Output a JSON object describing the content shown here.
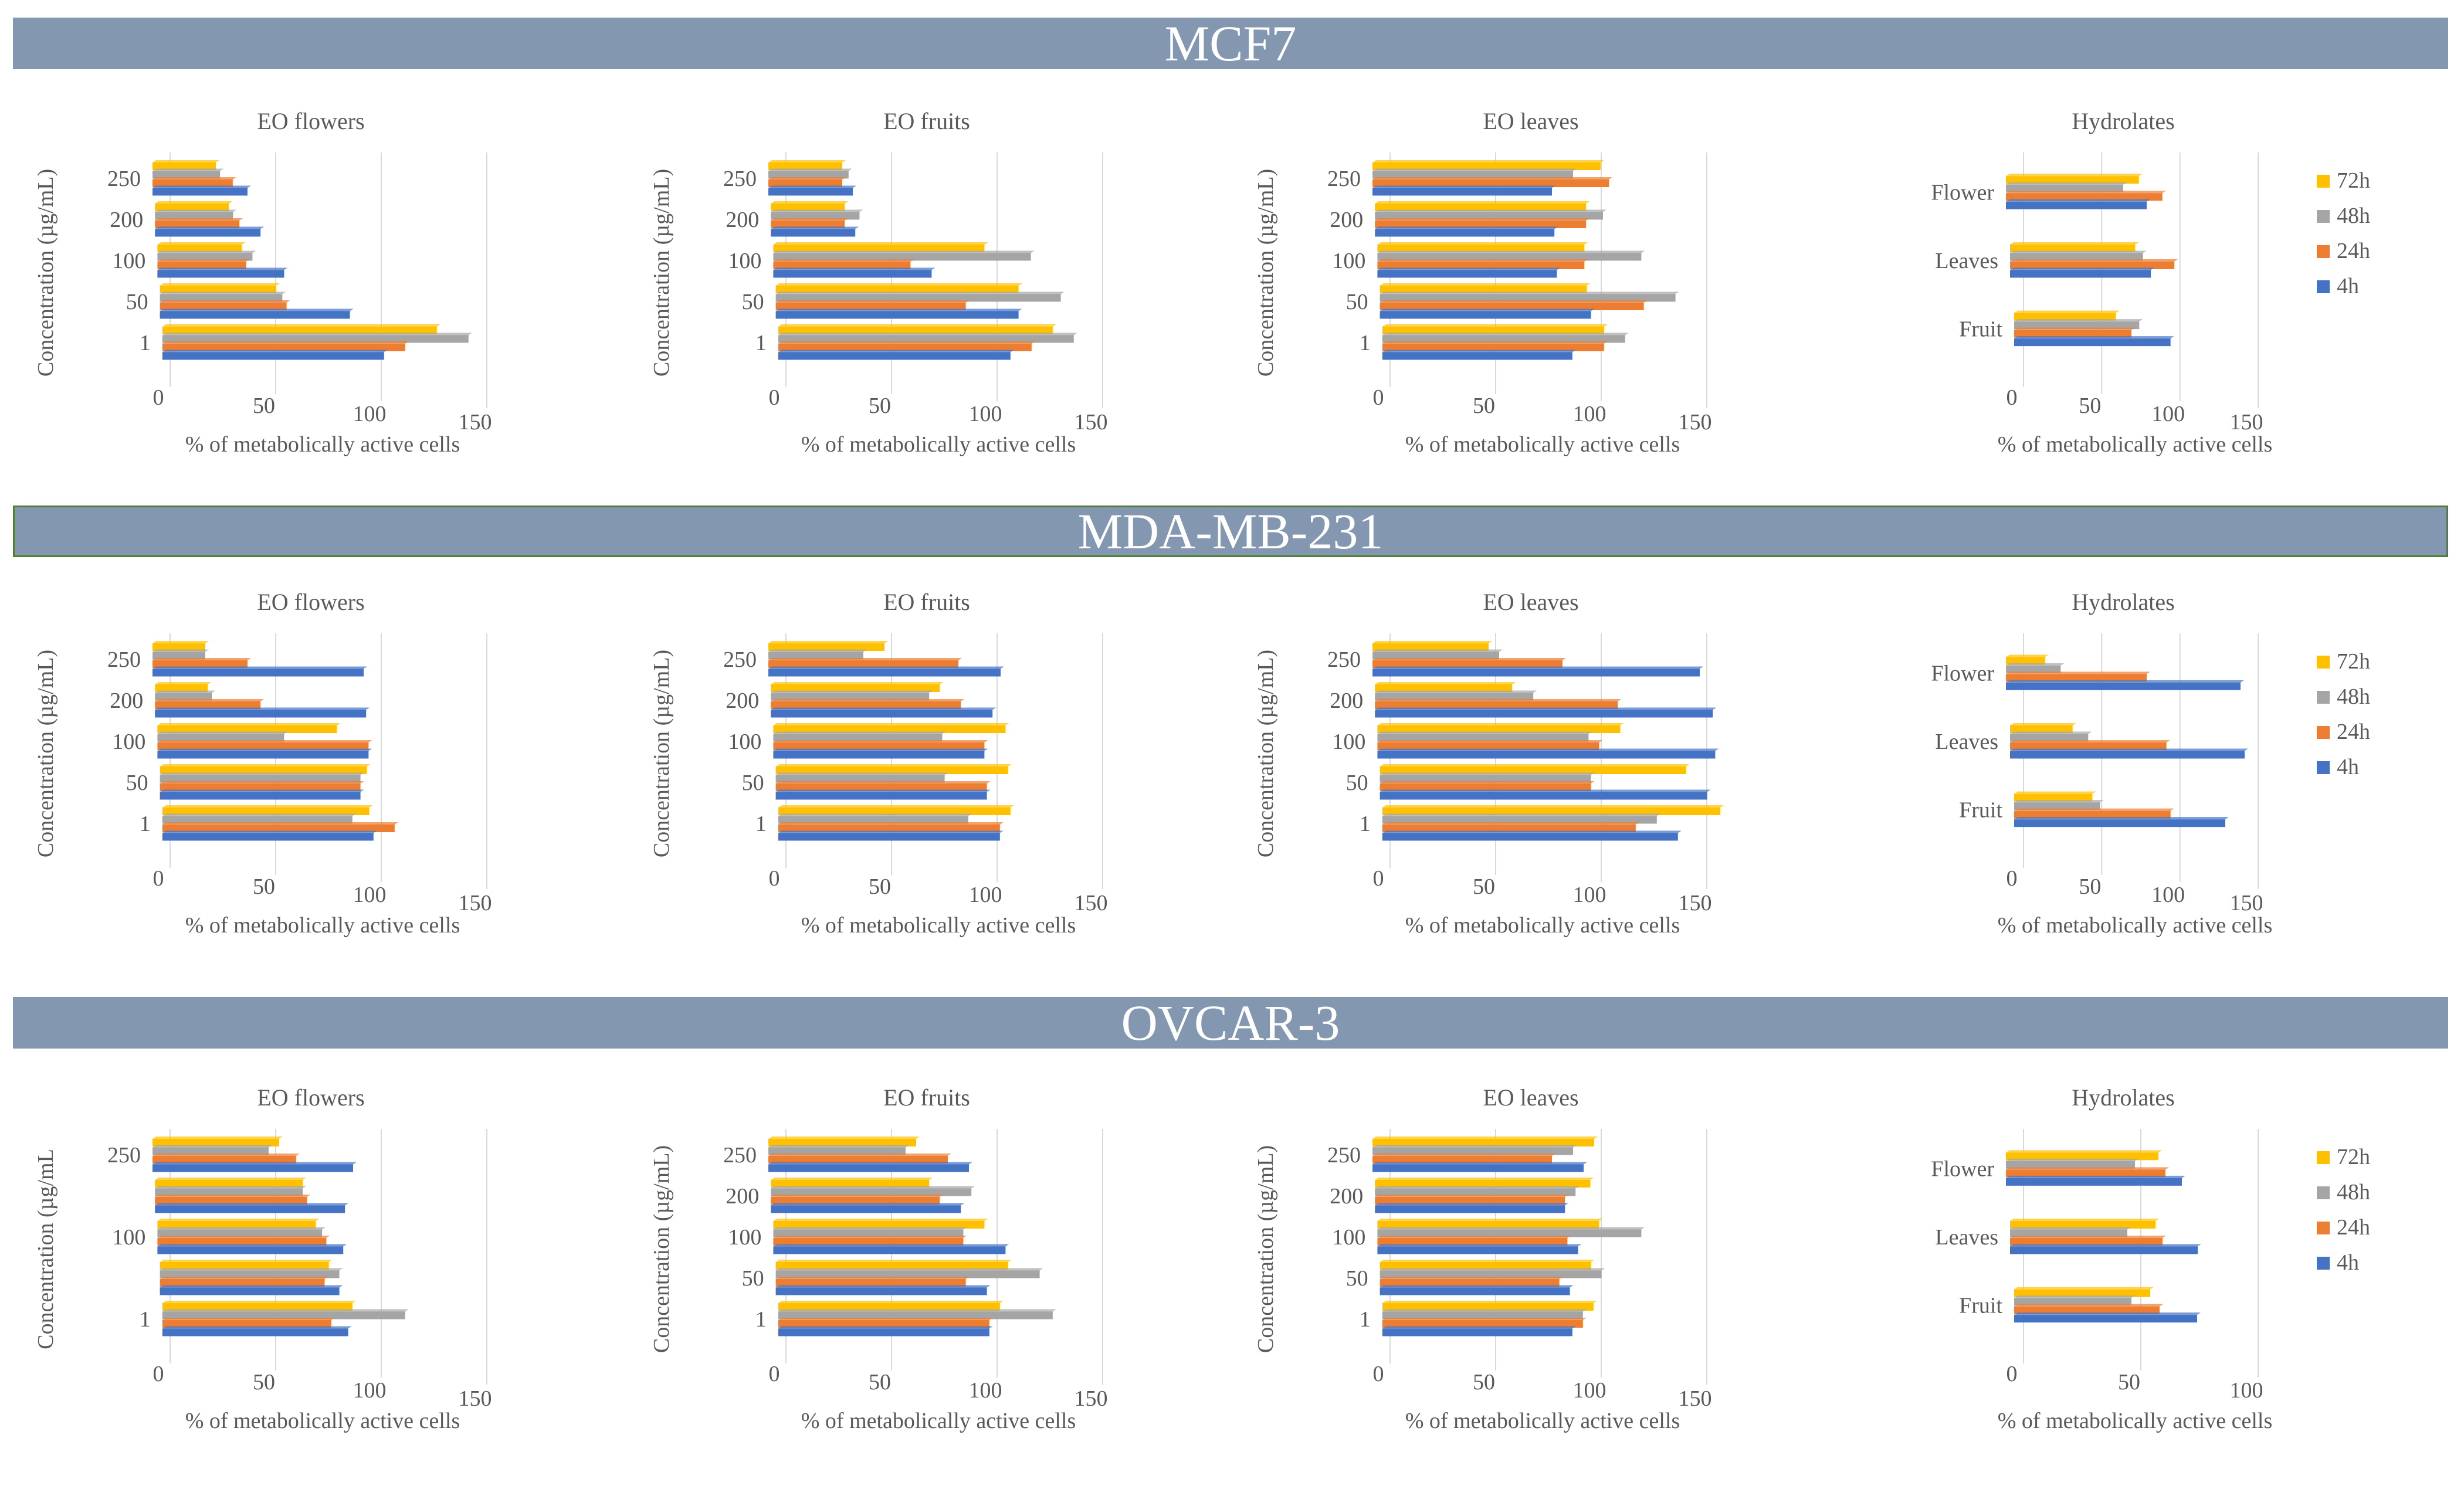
{
  "colors": {
    "h72": "#ffc000",
    "h48": "#a5a5a5",
    "h24": "#ed7d31",
    "h4": "#4472c4",
    "banner": "#8497b0",
    "text": "#595959",
    "grid": "#d9d9d9"
  },
  "series_names": [
    "72h",
    "48h",
    "24h",
    "4h"
  ],
  "sections": [
    {
      "title": "MCF7"
    },
    {
      "title": "MDA-MB-231"
    },
    {
      "title": "OVCAR-3"
    }
  ],
  "chart_data": [
    {
      "type": "bar",
      "section": "MCF7",
      "title": "EO flowers",
      "ylabel": "Concentration (µg/mL)",
      "xlabel": "% of metabolically active cells",
      "xlim": [
        0,
        150
      ],
      "xticks": [
        0,
        50,
        100,
        150
      ],
      "categories": [
        "250",
        "200",
        "100",
        "50",
        "1"
      ],
      "series": [
        {
          "name": "72h",
          "values": [
            30,
            35,
            40,
            55,
            130
          ]
        },
        {
          "name": "48h",
          "values": [
            32,
            37,
            45,
            58,
            145
          ]
        },
        {
          "name": "24h",
          "values": [
            38,
            40,
            42,
            60,
            115
          ]
        },
        {
          "name": "4h",
          "values": [
            45,
            50,
            60,
            90,
            105
          ]
        }
      ],
      "legend": false
    },
    {
      "type": "bar",
      "section": "MCF7",
      "title": "EO fruits",
      "ylabel": "Concentration (µg/mL)",
      "xlabel": "% of metabolically active cells",
      "xlim": [
        0,
        150
      ],
      "xticks": [
        0,
        50,
        100,
        150
      ],
      "categories": [
        "250",
        "200",
        "100",
        "50",
        "1"
      ],
      "series": [
        {
          "name": "72h",
          "values": [
            35,
            35,
            100,
            115,
            130
          ]
        },
        {
          "name": "48h",
          "values": [
            38,
            42,
            122,
            135,
            140
          ]
        },
        {
          "name": "24h",
          "values": [
            35,
            35,
            65,
            90,
            120
          ]
        },
        {
          "name": "4h",
          "values": [
            40,
            40,
            75,
            115,
            110
          ]
        }
      ],
      "legend": false
    },
    {
      "type": "bar",
      "section": "MCF7",
      "title": "EO leaves",
      "ylabel": "Concentration (µg/mL)",
      "xlabel": "% of metabolically active cells",
      "xlim": [
        0,
        150
      ],
      "xticks": [
        0,
        50,
        100,
        150
      ],
      "categories": [
        "250",
        "200",
        "100",
        "50",
        "1"
      ],
      "series": [
        {
          "name": "72h",
          "values": [
            108,
            100,
            98,
            98,
            105
          ]
        },
        {
          "name": "48h",
          "values": [
            95,
            108,
            125,
            140,
            115
          ]
        },
        {
          "name": "24h",
          "values": [
            112,
            100,
            98,
            125,
            105
          ]
        },
        {
          "name": "4h",
          "values": [
            85,
            85,
            85,
            100,
            90
          ]
        }
      ],
      "legend": false
    },
    {
      "type": "bar",
      "section": "MCF7",
      "title": "Hydrolates",
      "ylabel": "",
      "xlabel": "% of metabolically active cells",
      "xlim": [
        0,
        150
      ],
      "xticks": [
        0,
        50,
        100,
        150
      ],
      "categories": [
        "Flower",
        "Leaves",
        "Fruit"
      ],
      "series": [
        {
          "name": "72h",
          "values": [
            85,
            80,
            65
          ]
        },
        {
          "name": "48h",
          "values": [
            75,
            85,
            80
          ]
        },
        {
          "name": "24h",
          "values": [
            100,
            105,
            75
          ]
        },
        {
          "name": "4h",
          "values": [
            90,
            90,
            100
          ]
        }
      ],
      "legend": true
    },
    {
      "type": "bar",
      "section": "MDA-MB-231",
      "title": "EO flowers",
      "ylabel": "Concentration (µg/mL)",
      "xlabel": "% of metabolically active cells",
      "xlim": [
        0,
        150
      ],
      "xticks": [
        0,
        50,
        100,
        150
      ],
      "categories": [
        "250",
        "200",
        "100",
        "50",
        "1"
      ],
      "series": [
        {
          "name": "72h",
          "values": [
            25,
            25,
            85,
            98,
            98
          ]
        },
        {
          "name": "48h",
          "values": [
            25,
            27,
            60,
            95,
            90
          ]
        },
        {
          "name": "24h",
          "values": [
            45,
            50,
            100,
            95,
            110
          ]
        },
        {
          "name": "4h",
          "values": [
            100,
            100,
            100,
            95,
            100
          ]
        }
      ],
      "legend": false
    },
    {
      "type": "bar",
      "section": "MDA-MB-231",
      "title": "EO fruits",
      "ylabel": "Concentration (µg/mL)",
      "xlabel": "% of metabolically active cells",
      "xlim": [
        0,
        150
      ],
      "xticks": [
        0,
        50,
        100,
        150
      ],
      "categories": [
        "250",
        "200",
        "100",
        "50",
        "1"
      ],
      "series": [
        {
          "name": "72h",
          "values": [
            55,
            80,
            110,
            110,
            110
          ]
        },
        {
          "name": "48h",
          "values": [
            45,
            75,
            80,
            80,
            90
          ]
        },
        {
          "name": "24h",
          "values": [
            90,
            90,
            100,
            100,
            105
          ]
        },
        {
          "name": "4h",
          "values": [
            110,
            105,
            100,
            100,
            105
          ]
        }
      ],
      "legend": false
    },
    {
      "type": "bar",
      "section": "MDA-MB-231",
      "title": "EO leaves",
      "ylabel": "Concentration (µg/mL)",
      "xlabel": "% of metabolically active cells",
      "xlim": [
        0,
        150
      ],
      "xticks": [
        0,
        50,
        100,
        150
      ],
      "categories": [
        "250",
        "200",
        "100",
        "50",
        "1"
      ],
      "series": [
        {
          "name": "72h",
          "values": [
            55,
            65,
            115,
            145,
            160
          ]
        },
        {
          "name": "48h",
          "values": [
            60,
            75,
            100,
            100,
            130
          ]
        },
        {
          "name": "24h",
          "values": [
            90,
            115,
            105,
            100,
            120
          ]
        },
        {
          "name": "4h",
          "values": [
            155,
            160,
            160,
            155,
            140
          ]
        }
      ],
      "legend": false
    },
    {
      "type": "bar",
      "section": "MDA-MB-231",
      "title": "Hydrolates",
      "ylabel": "",
      "xlabel": "% of metabolically active cells",
      "xlim": [
        0,
        150
      ],
      "xticks": [
        0,
        50,
        100,
        150
      ],
      "categories": [
        "Flower",
        "Leaves",
        "Fruit"
      ],
      "series": [
        {
          "name": "72h",
          "values": [
            25,
            40,
            50
          ]
        },
        {
          "name": "48h",
          "values": [
            35,
            50,
            55
          ]
        },
        {
          "name": "24h",
          "values": [
            90,
            100,
            100
          ]
        },
        {
          "name": "4h",
          "values": [
            150,
            150,
            135
          ]
        }
      ],
      "legend": true
    },
    {
      "type": "bar",
      "section": "OVCAR-3",
      "title": "EO flowers",
      "ylabel": "Concentration (µg/mL",
      "xlabel": "% of metabolically active cells",
      "xlim": [
        0,
        150
      ],
      "xticks": [
        0,
        50,
        100,
        150
      ],
      "categories": [
        "250",
        "",
        "100",
        "",
        "1"
      ],
      "series": [
        {
          "name": "72h",
          "values": [
            60,
            70,
            75,
            80,
            90
          ]
        },
        {
          "name": "48h",
          "values": [
            55,
            70,
            78,
            85,
            115
          ]
        },
        {
          "name": "24h",
          "values": [
            68,
            72,
            80,
            78,
            80
          ]
        },
        {
          "name": "4h",
          "values": [
            95,
            90,
            88,
            85,
            88
          ]
        }
      ],
      "legend": false
    },
    {
      "type": "bar",
      "section": "OVCAR-3",
      "title": "EO fruits",
      "ylabel": "Concentration (µg/mL)",
      "xlabel": "% of metabolically active cells",
      "xlim": [
        0,
        150
      ],
      "xticks": [
        0,
        50,
        100,
        150
      ],
      "categories": [
        "250",
        "200",
        "100",
        "50",
        "1"
      ],
      "series": [
        {
          "name": "72h",
          "values": [
            70,
            75,
            100,
            110,
            105
          ]
        },
        {
          "name": "48h",
          "values": [
            65,
            95,
            90,
            125,
            130
          ]
        },
        {
          "name": "24h",
          "values": [
            85,
            80,
            90,
            90,
            100
          ]
        },
        {
          "name": "4h",
          "values": [
            95,
            90,
            110,
            100,
            100
          ]
        }
      ],
      "legend": false
    },
    {
      "type": "bar",
      "section": "OVCAR-3",
      "title": "EO leaves",
      "ylabel": "Concentration (µg/mL)",
      "xlabel": "% of metabolically active cells",
      "xlim": [
        0,
        150
      ],
      "xticks": [
        0,
        50,
        100,
        150
      ],
      "categories": [
        "250",
        "200",
        "100",
        "50",
        "1"
      ],
      "series": [
        {
          "name": "72h",
          "values": [
            105,
            102,
            105,
            100,
            100
          ]
        },
        {
          "name": "48h",
          "values": [
            95,
            95,
            125,
            105,
            95
          ]
        },
        {
          "name": "24h",
          "values": [
            85,
            90,
            90,
            85,
            95
          ]
        },
        {
          "name": "4h",
          "values": [
            100,
            90,
            95,
            90,
            90
          ]
        }
      ],
      "legend": false
    },
    {
      "type": "bar",
      "section": "OVCAR-3",
      "title": "Hydrolates",
      "ylabel": "",
      "xlabel": "% of metabolically active cells",
      "xlim": [
        0,
        100
      ],
      "xticks": [
        0,
        50,
        100
      ],
      "categories": [
        "Flower",
        "Leaves",
        "Fruit"
      ],
      "series": [
        {
          "name": "72h",
          "values": [
            65,
            62,
            58
          ]
        },
        {
          "name": "48h",
          "values": [
            55,
            50,
            50
          ]
        },
        {
          "name": "24h",
          "values": [
            68,
            65,
            62
          ]
        },
        {
          "name": "4h",
          "values": [
            75,
            80,
            78
          ]
        }
      ],
      "legend": true
    }
  ]
}
